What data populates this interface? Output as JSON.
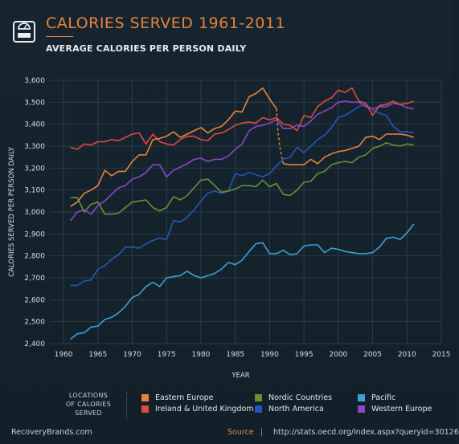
{
  "header": {
    "title": "CALORIES SERVED 1961-2011",
    "subtitle": "AVERAGE CALORIES PER PERSON DAILY",
    "icon": "scale-icon",
    "accent_color": "#e8833a"
  },
  "chart_data": {
    "type": "line",
    "title": "CALORIES SERVED 1961-2011",
    "subtitle": "AVERAGE CALORIES PER PERSON DAILY",
    "xlabel": "YEAR",
    "ylabel": "CALORIES SERVED PER PERSON DAILY",
    "xlim": [
      1958,
      2015
    ],
    "ylim": [
      2400,
      3600
    ],
    "xticks": [
      "1960",
      "1965",
      "1970",
      "1975",
      "1980",
      "1985",
      "1990",
      "1995",
      "2000",
      "2005",
      "2010",
      "2015"
    ],
    "yticks": [
      "2,400",
      "2,500",
      "2,600",
      "2,700",
      "2,800",
      "2,900",
      "3,000",
      "3,100",
      "3,200",
      "3,300",
      "3,400",
      "3,500",
      "3,600"
    ],
    "grid": true,
    "legend_position": "bottom",
    "series": [
      {
        "name": "Eastern Europe",
        "color": "#e8833a",
        "x": [
          1961,
          1962,
          1963,
          1964,
          1965,
          1966,
          1967,
          1968,
          1969,
          1970,
          1971,
          1972,
          1973,
          1974,
          1975,
          1976,
          1977,
          1978,
          1979,
          1980,
          1981,
          1982,
          1983,
          1984,
          1985,
          1986,
          1987,
          1988,
          1989,
          1990,
          1991
        ],
        "values": [
          3025,
          3045,
          3085,
          3100,
          3120,
          3190,
          3165,
          3185,
          3185,
          3230,
          3260,
          3260,
          3330,
          3335,
          3345,
          3365,
          3340,
          3355,
          3370,
          3385,
          3360,
          3380,
          3390,
          3420,
          3460,
          3455,
          3525,
          3540,
          3565,
          3515,
          3470
        ],
        "break_after": {
          "x": [
            1991,
            1992,
            1993,
            1994,
            1995,
            1996,
            1997,
            1998,
            1999,
            2000,
            2001,
            2002,
            2003,
            2004,
            2005,
            2006,
            2007,
            2008,
            2009,
            2010,
            2011
          ],
          "values": [
            3470,
            3220,
            3215,
            3215,
            3215,
            3240,
            3220,
            3250,
            3265,
            3275,
            3280,
            3290,
            3300,
            3340,
            3345,
            3330,
            3355,
            3355,
            3355,
            3350,
            3340
          ],
          "dashed_until": 1992
        }
      },
      {
        "name": "Ireland & United Kingdom",
        "color": "#e04a3f",
        "x": [
          1961,
          1962,
          1963,
          1964,
          1965,
          1966,
          1967,
          1968,
          1969,
          1970,
          1971,
          1972,
          1973,
          1974,
          1975,
          1976,
          1977,
          1978,
          1979,
          1980,
          1981,
          1982,
          1983,
          1984,
          1985,
          1986,
          1987,
          1988,
          1989,
          1990,
          1991,
          1992,
          1993,
          1994,
          1995,
          1996,
          1997,
          1998,
          1999,
          2000,
          2001,
          2002,
          2003,
          2004,
          2005,
          2006,
          2007,
          2008,
          2009,
          2010,
          2011
        ],
        "values": [
          3295,
          3285,
          3310,
          3305,
          3320,
          3320,
          3330,
          3325,
          3340,
          3355,
          3360,
          3310,
          3355,
          3320,
          3310,
          3305,
          3330,
          3345,
          3345,
          3330,
          3325,
          3355,
          3360,
          3375,
          3395,
          3405,
          3410,
          3405,
          3430,
          3420,
          3430,
          3400,
          3395,
          3370,
          3440,
          3430,
          3480,
          3505,
          3520,
          3555,
          3545,
          3565,
          3505,
          3495,
          3440,
          3485,
          3490,
          3505,
          3490,
          3495,
          3505
        ]
      },
      {
        "name": "Nordic Countries",
        "color": "#6c8f34",
        "x": [
          1961,
          1962,
          1963,
          1964,
          1965,
          1966,
          1967,
          1968,
          1969,
          1970,
          1971,
          1972,
          1973,
          1974,
          1975,
          1976,
          1977,
          1978,
          1979,
          1980,
          1981,
          1982,
          1983,
          1984,
          1985,
          1986,
          1987,
          1988,
          1989,
          1990,
          1991,
          1992,
          1993,
          1994,
          1995,
          1996,
          1997,
          1998,
          1999,
          2000,
          2001,
          2002,
          2003,
          2004,
          2005,
          2006,
          2007,
          2008,
          2009,
          2010,
          2011
        ],
        "values": [
          3065,
          3065,
          3000,
          3035,
          3045,
          2990,
          2990,
          2995,
          3020,
          3045,
          3050,
          3055,
          3020,
          3005,
          3020,
          3070,
          3055,
          3075,
          3110,
          3145,
          3150,
          3120,
          3090,
          3095,
          3105,
          3120,
          3120,
          3115,
          3145,
          3115,
          3130,
          3080,
          3075,
          3100,
          3135,
          3140,
          3175,
          3185,
          3215,
          3225,
          3230,
          3225,
          3250,
          3260,
          3290,
          3300,
          3315,
          3305,
          3300,
          3310,
          3305
        ]
      },
      {
        "name": "North America",
        "color": "#2458b8",
        "x": [
          1961,
          1962,
          1963,
          1964,
          1965,
          1966,
          1967,
          1968,
          1969,
          1970,
          1971,
          1972,
          1973,
          1974,
          1975,
          1976,
          1977,
          1978,
          1979,
          1980,
          1981,
          1982,
          1983,
          1984,
          1985,
          1986,
          1987,
          1988,
          1989,
          1990,
          1991,
          1992,
          1993,
          1994,
          1995,
          1996,
          1997,
          1998,
          1999,
          2000,
          2001,
          2002,
          2003,
          2004,
          2005,
          2006,
          2007,
          2008,
          2009,
          2010,
          2011
        ],
        "values": [
          2665,
          2665,
          2685,
          2690,
          2740,
          2755,
          2785,
          2805,
          2840,
          2840,
          2835,
          2855,
          2870,
          2880,
          2875,
          2960,
          2955,
          2975,
          3010,
          3050,
          3085,
          3095,
          3085,
          3095,
          3175,
          3165,
          3180,
          3170,
          3160,
          3175,
          3210,
          3240,
          3250,
          3295,
          3270,
          3300,
          3330,
          3350,
          3385,
          3430,
          3440,
          3460,
          3480,
          3490,
          3465,
          3450,
          3440,
          3390,
          3365,
          3365,
          3360
        ]
      },
      {
        "name": "Pacific",
        "color": "#3fa0d8",
        "x": [
          1961,
          1962,
          1963,
          1964,
          1965,
          1966,
          1967,
          1968,
          1969,
          1970,
          1971,
          1972,
          1973,
          1974,
          1975,
          1976,
          1977,
          1978,
          1979,
          1980,
          1981,
          1982,
          1983,
          1984,
          1985,
          1986,
          1987,
          1988,
          1989,
          1990,
          1991,
          1992,
          1993,
          1994,
          1995,
          1996,
          1997,
          1998,
          1999,
          2000,
          2001,
          2002,
          2003,
          2004,
          2005,
          2006,
          2007,
          2008,
          2009,
          2010,
          2011
        ],
        "values": [
          2420,
          2445,
          2450,
          2475,
          2480,
          2510,
          2520,
          2540,
          2570,
          2610,
          2625,
          2660,
          2680,
          2660,
          2700,
          2705,
          2710,
          2730,
          2710,
          2700,
          2710,
          2720,
          2740,
          2770,
          2760,
          2780,
          2820,
          2855,
          2860,
          2810,
          2810,
          2825,
          2805,
          2810,
          2845,
          2850,
          2850,
          2815,
          2835,
          2830,
          2820,
          2815,
          2810,
          2810,
          2815,
          2840,
          2880,
          2885,
          2875,
          2905,
          2945
        ]
      },
      {
        "name": "Western Europe",
        "color": "#8b47c7",
        "x": [
          1961,
          1962,
          1963,
          1964,
          1965,
          1966,
          1967,
          1968,
          1969,
          1970,
          1971,
          1972,
          1973,
          1974,
          1975,
          1976,
          1977,
          1978,
          1979,
          1980,
          1981,
          1982,
          1983,
          1984,
          1985,
          1986,
          1987,
          1988,
          1989,
          1990,
          1991,
          1992,
          1993,
          1994,
          1995,
          1996,
          1997,
          1998,
          1999,
          2000,
          2001,
          2002,
          2003,
          2004,
          2005,
          2006,
          2007,
          2008,
          2009,
          2010,
          2011
        ],
        "values": [
          2960,
          3000,
          3010,
          2990,
          3030,
          3050,
          3080,
          3110,
          3120,
          3150,
          3160,
          3180,
          3215,
          3215,
          3160,
          3190,
          3205,
          3220,
          3240,
          3245,
          3230,
          3240,
          3240,
          3255,
          3285,
          3310,
          3370,
          3390,
          3395,
          3405,
          3420,
          3380,
          3380,
          3395,
          3390,
          3415,
          3445,
          3460,
          3475,
          3500,
          3505,
          3500,
          3500,
          3480,
          3470,
          3480,
          3480,
          3495,
          3490,
          3475,
          3470
        ]
      }
    ]
  },
  "legend": {
    "heading": [
      "LOCATIONS",
      "OF CALORIES",
      "SERVED"
    ],
    "items": [
      {
        "label": "Eastern Europe",
        "color": "#e8833a"
      },
      {
        "label": "Ireland & United Kingdom",
        "color": "#e04a3f"
      },
      {
        "label": "Nordic Countries",
        "color": "#6c8f34"
      },
      {
        "label": "North America",
        "color": "#2458b8"
      },
      {
        "label": "Pacific",
        "color": "#3fa0d8"
      },
      {
        "label": "Western Europe",
        "color": "#8b47c7"
      }
    ]
  },
  "footer": {
    "brand": "RecoveryBrands.com",
    "source_label": "Source",
    "separator": "|",
    "url": "http://stats.oecd.org/index.aspx?queryid=30126"
  }
}
